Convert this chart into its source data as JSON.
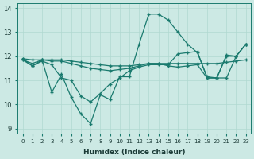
{
  "title": "",
  "xlabel": "Humidex (Indice chaleur)",
  "ylabel": "",
  "xlim": [
    -0.5,
    23.5
  ],
  "ylim": [
    8.8,
    14.2
  ],
  "yticks": [
    9,
    10,
    11,
    12,
    13,
    14
  ],
  "xticks": [
    0,
    1,
    2,
    3,
    4,
    5,
    6,
    7,
    8,
    9,
    10,
    11,
    12,
    13,
    14,
    15,
    16,
    17,
    18,
    19,
    20,
    21,
    22,
    23
  ],
  "xtick_labels": [
    "0",
    "1",
    "2",
    "3",
    "4",
    "5",
    "6",
    "7",
    "8",
    "9",
    "10",
    "11",
    "12",
    "13",
    "14",
    "15",
    "16",
    "17",
    "18",
    "19",
    "20",
    "21",
    "22",
    "23"
  ],
  "bg_color": "#cce9e4",
  "grid_color": "#b0d8d0",
  "line_color": "#1a7a6e",
  "lines": [
    {
      "x": [
        0,
        1,
        2,
        3,
        4,
        5,
        6,
        7,
        8,
        9,
        10,
        11,
        12,
        13,
        14,
        15,
        16,
        17,
        18,
        19,
        20,
        21,
        22,
        23
      ],
      "y": [
        11.9,
        11.6,
        11.85,
        10.5,
        11.25,
        10.3,
        9.6,
        9.2,
        10.4,
        10.2,
        11.15,
        11.15,
        12.5,
        13.75,
        13.75,
        13.5,
        13.0,
        12.5,
        12.15,
        11.15,
        11.1,
        12.0,
        12.0,
        12.5
      ]
    },
    {
      "x": [
        0,
        1,
        2,
        3,
        4,
        5,
        6,
        7,
        8,
        9,
        10,
        11,
        12,
        13,
        14,
        15,
        16,
        17,
        18,
        19,
        20,
        21,
        22,
        23
      ],
      "y": [
        11.9,
        11.85,
        11.85,
        11.85,
        11.85,
        11.8,
        11.75,
        11.7,
        11.65,
        11.6,
        11.6,
        11.6,
        11.65,
        11.7,
        11.7,
        11.7,
        11.7,
        11.7,
        11.7,
        11.7,
        11.7,
        11.75,
        11.8,
        11.85
      ]
    },
    {
      "x": [
        0,
        1,
        2,
        3,
        4,
        5,
        6,
        7,
        8,
        9,
        10,
        11,
        12,
        13,
        14,
        15,
        16,
        17,
        18,
        19,
        20,
        21,
        22,
        23
      ],
      "y": [
        11.85,
        11.7,
        11.85,
        11.8,
        11.8,
        11.7,
        11.6,
        11.5,
        11.45,
        11.4,
        11.45,
        11.5,
        11.6,
        11.7,
        11.7,
        11.6,
        11.55,
        11.6,
        11.65,
        11.1,
        11.1,
        12.05,
        12.0,
        12.5
      ]
    },
    {
      "x": [
        0,
        1,
        2,
        3,
        4,
        5,
        6,
        7,
        8,
        9,
        10,
        11,
        12,
        13,
        14,
        15,
        16,
        17,
        18,
        19,
        20,
        21,
        22,
        23
      ],
      "y": [
        11.85,
        11.6,
        11.8,
        11.65,
        11.1,
        11.0,
        10.35,
        10.1,
        10.45,
        10.85,
        11.1,
        11.4,
        11.55,
        11.65,
        11.65,
        11.65,
        12.1,
        12.15,
        12.2,
        11.1,
        11.1,
        11.1,
        12.0,
        12.5
      ]
    }
  ]
}
